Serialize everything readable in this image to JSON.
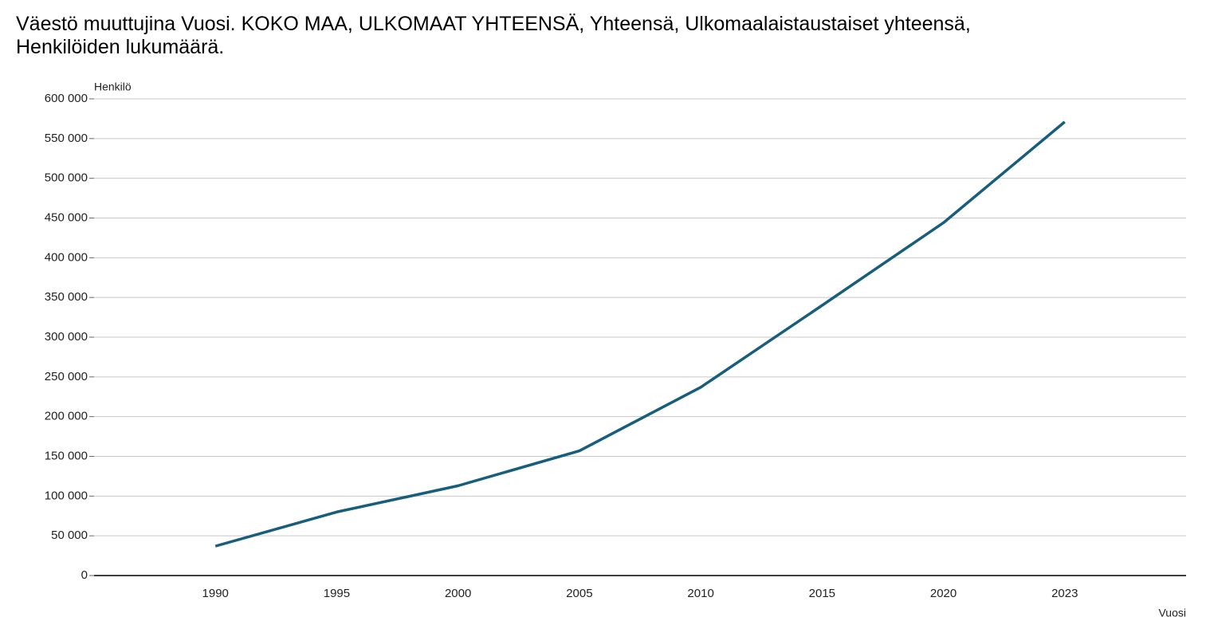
{
  "chart_data": {
    "type": "line",
    "title": "Väestö muuttujina Vuosi. KOKO MAA, ULKOMAAT YHTEENSÄ, Yhteensä, Ulkomaalaistaustaiset yhteensä, Henkilöiden lukumäärä.",
    "y_label": "Henkilö",
    "x_label": "Vuosi",
    "categories": [
      "1990",
      "1995",
      "2000",
      "2005",
      "2010",
      "2015",
      "2020",
      "2023"
    ],
    "series": [
      {
        "name": "Ulkomaalaistaustaiset yhteensä",
        "color": "#175e7d",
        "values": [
          37000,
          80000,
          113000,
          157000,
          237000,
          340000,
          444000,
          571000
        ]
      }
    ],
    "ylim": [
      0,
      600000
    ],
    "yticks": [
      {
        "value": 0,
        "label": "0"
      },
      {
        "value": 50000,
        "label": "50 000"
      },
      {
        "value": 100000,
        "label": "100 000"
      },
      {
        "value": 150000,
        "label": "150 000"
      },
      {
        "value": 200000,
        "label": "200 000"
      },
      {
        "value": 250000,
        "label": "250 000"
      },
      {
        "value": 300000,
        "label": "300 000"
      },
      {
        "value": 350000,
        "label": "350 000"
      },
      {
        "value": 400000,
        "label": "400 000"
      },
      {
        "value": 450000,
        "label": "450 000"
      },
      {
        "value": 500000,
        "label": "500 000"
      },
      {
        "value": 550000,
        "label": "550 000"
      },
      {
        "value": 600000,
        "label": "600 000"
      }
    ],
    "grid": true
  }
}
